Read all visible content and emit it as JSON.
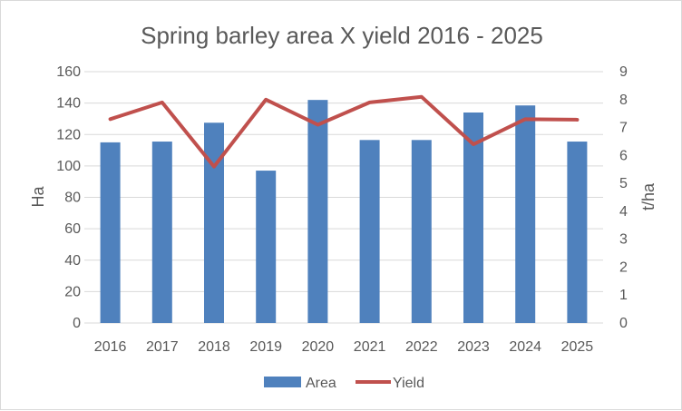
{
  "chart_data": {
    "type": "bar",
    "title": "Spring barley area X yield 2016 - 2025",
    "categories": [
      "2016",
      "2017",
      "2018",
      "2019",
      "2020",
      "2021",
      "2022",
      "2023",
      "2024",
      "2025"
    ],
    "series": [
      {
        "name": "Area",
        "type": "bar",
        "axis": "left",
        "color": "#4f81bd",
        "values": [
          115,
          115.5,
          127.5,
          97,
          142,
          116.5,
          116.5,
          134,
          138.5,
          115.5
        ]
      },
      {
        "name": "Yield",
        "type": "line",
        "axis": "right",
        "color": "#c0504d",
        "values": [
          7.3,
          7.9,
          5.6,
          8.0,
          7.1,
          7.9,
          8.1,
          6.4,
          7.3,
          7.28
        ]
      }
    ],
    "ylabel": "Ha",
    "y2label": "t/ha",
    "ylim": [
      0,
      160
    ],
    "yticks": [
      "0",
      "20",
      "40",
      "60",
      "80",
      "100",
      "120",
      "140",
      "160"
    ],
    "y2lim": [
      0,
      9
    ],
    "y2ticks": [
      "0",
      "1",
      "2",
      "3",
      "4",
      "5",
      "6",
      "7",
      "8",
      "9"
    ],
    "grid": true,
    "legend_position": "bottom"
  }
}
